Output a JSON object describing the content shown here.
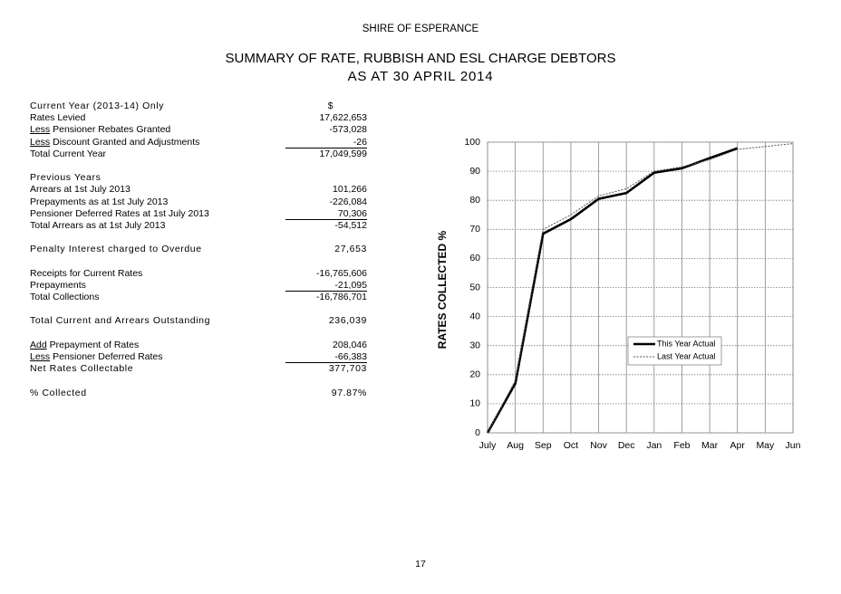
{
  "header": {
    "organisation": "SHIRE OF ESPERANCE",
    "title": "SUMMARY OF RATE, RUBBISH AND ESL CHARGE DEBTORS",
    "subtitle": "AS AT 30 APRIL 2014"
  },
  "table": {
    "sections": [
      [
        {
          "label": "Current Year (2013-14) Only",
          "value": "$",
          "emphasis": true
        },
        {
          "label": "Rates Levied",
          "value": "17,622,653"
        },
        {
          "prefix": "Less",
          "label": "Pensioner Rebates Granted",
          "value": "-573,028"
        },
        {
          "prefix": "Less",
          "label": "Discount Granted and Adjustments",
          "value": "-26",
          "underline": true
        },
        {
          "label": "Total Current Year",
          "value": "17,049,599"
        }
      ],
      [
        {
          "label": "Previous Years",
          "emphasis": true
        },
        {
          "label": "Arrears at 1st July 2013",
          "value": "101,266"
        },
        {
          "label": "Prepayments as at 1st July 2013",
          "value": "-226,084"
        },
        {
          "label": "Pensioner Deferred Rates at 1st July 2013",
          "value": "70,306",
          "underline": true
        },
        {
          "label": "Total Arrears as at 1st July 2013",
          "value": "-54,512"
        }
      ],
      [
        {
          "label": "Penalty Interest charged to Overdue",
          "value": "27,653",
          "emphasis": true
        }
      ],
      [
        {
          "label": "Receipts for Current Rates",
          "value": "-16,765,606"
        },
        {
          "label": "Prepayments",
          "value": "-21,095",
          "underline": true
        },
        {
          "label": "Total Collections",
          "value": "-16,786,701"
        }
      ],
      [
        {
          "label": "Total Current and Arrears Outstanding",
          "value": "236,039",
          "emphasis": true
        }
      ],
      [
        {
          "prefix": "Add",
          "label": "Prepayment of Rates",
          "value": "208,046"
        },
        {
          "prefix": "Less",
          "label": "Pensioner Deferred Rates",
          "value": "-66,383",
          "underline": true
        },
        {
          "label": "Net Rates Collectable",
          "value": "377,703",
          "emphasis": true
        }
      ],
      [
        {
          "label": "% Collected",
          "value": "97.87%",
          "emphasis": true
        }
      ]
    ]
  },
  "chart_data": {
    "type": "line",
    "y_label": "RATES COLLECTED %",
    "categories": [
      "July",
      "Aug",
      "Sep",
      "Oct",
      "Nov",
      "Dec",
      "Jan",
      "Feb",
      "Mar",
      "Apr",
      "May",
      "Jun"
    ],
    "series": [
      {
        "name": "This Year Actual",
        "color": "#000000",
        "values": [
          0,
          17,
          68.5,
          73.5,
          80.5,
          82.5,
          89.5,
          91,
          94.5,
          97.9,
          null,
          null
        ]
      },
      {
        "name": "Last Year Actual",
        "color": "#555555",
        "values": [
          0,
          18,
          70,
          75,
          81.5,
          84,
          90,
          91.5,
          94,
          97.5,
          98.5,
          99.5
        ]
      }
    ],
    "ylim": [
      0,
      100
    ],
    "yticks": [
      0,
      10,
      20,
      30,
      40,
      50,
      60,
      70,
      80,
      90,
      100
    ],
    "grid": true
  },
  "footer": {
    "page": "17"
  }
}
